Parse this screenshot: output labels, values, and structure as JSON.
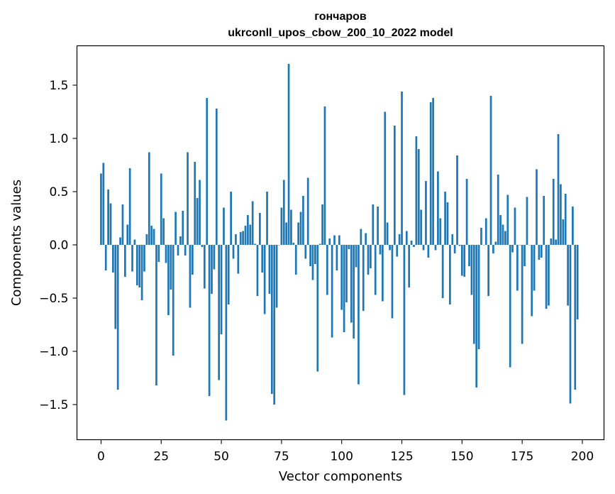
{
  "chart_data": {
    "type": "bar",
    "title": "гончаров",
    "subtitle": "ukrconll_upos_cbow_200_10_2022 model",
    "xlabel": "Vector components",
    "ylabel": "Components values",
    "xlim": [
      -10,
      209
    ],
    "ylim": [
      -1.83,
      1.87
    ],
    "x_ticks": [
      0,
      25,
      50,
      75,
      100,
      125,
      150,
      175,
      200
    ],
    "x_tick_labels": [
      "0",
      "25",
      "50",
      "75",
      "100",
      "125",
      "150",
      "175",
      "200"
    ],
    "y_ticks": [
      1.5,
      1.0,
      0.5,
      0.0,
      -0.5,
      -1.0,
      -1.5
    ],
    "y_tick_labels": [
      "1.5",
      "1.0",
      "0.5",
      "0.0",
      "−0.5",
      "−1.0",
      "−1.5"
    ],
    "bar_color": "#1f77b4",
    "values": [
      0.67,
      0.77,
      -0.24,
      0.52,
      0.39,
      -0.26,
      -0.79,
      -1.36,
      0.07,
      0.38,
      -0.3,
      0.19,
      0.72,
      -0.25,
      0.05,
      -0.38,
      -0.4,
      -0.52,
      -0.25,
      0.1,
      0.87,
      0.18,
      0.15,
      -1.32,
      -0.16,
      0.67,
      0.25,
      -0.17,
      -0.66,
      -0.42,
      -1.04,
      0.31,
      -0.1,
      0.08,
      0.32,
      -0.1,
      0.87,
      -0.59,
      -0.28,
      0.78,
      0.44,
      0.61,
      -0.02,
      -0.41,
      1.38,
      -1.42,
      -0.46,
      -0.23,
      1.28,
      -1.27,
      -0.84,
      0.35,
      -1.65,
      -0.56,
      0.5,
      -0.13,
      0.1,
      -0.27,
      0.12,
      0.13,
      0.18,
      0.28,
      0.19,
      0.41,
      0.01,
      -0.48,
      0.3,
      -0.26,
      -0.65,
      0.5,
      -0.46,
      -1.4,
      -1.5,
      -0.59,
      0.0,
      0.35,
      0.61,
      0.21,
      1.7,
      0.33,
      0.02,
      -0.28,
      0.21,
      0.31,
      0.46,
      -0.13,
      0.63,
      -0.2,
      -0.33,
      -0.18,
      -1.19,
      0.01,
      0.38,
      1.3,
      -0.47,
      0.06,
      -0.87,
      0.09,
      -0.24,
      0.09,
      -0.61,
      -0.82,
      -0.54,
      -0.04,
      -0.73,
      -0.88,
      -0.21,
      -1.31,
      0.15,
      -0.62,
      0.11,
      -0.28,
      -0.22,
      0.38,
      -0.47,
      0.36,
      -0.09,
      -0.53,
      1.25,
      0.21,
      -0.05,
      -0.69,
      1.12,
      -0.11,
      0.1,
      1.44,
      -1.41,
      0.13,
      -0.4,
      0.04,
      -0.02,
      1.02,
      0.9,
      0.33,
      -0.05,
      0.6,
      -0.12,
      1.34,
      1.38,
      -0.05,
      0.69,
      0.25,
      -0.5,
      0.5,
      0.4,
      -0.56,
      0.1,
      -0.08,
      0.84,
      -0.01,
      -0.29,
      -0.3,
      0.62,
      -0.2,
      -0.47,
      -0.93,
      -1.34,
      -0.98,
      0.16,
      0.0,
      0.25,
      -0.48,
      1.4,
      -0.08,
      0.03,
      0.66,
      0.28,
      0.19,
      0.13,
      0.47,
      -1.15,
      -0.07,
      0.35,
      -0.43,
      0.0,
      -0.93,
      -0.2,
      0.45,
      0.0,
      -0.67,
      -0.43,
      0.71,
      -0.14,
      -0.12,
      0.46,
      -0.6,
      -0.57,
      0.06,
      0.62,
      0.05,
      1.04,
      0.57,
      0.24,
      0.48,
      -0.57,
      -1.49,
      0.36,
      -1.36,
      -0.7
    ]
  }
}
